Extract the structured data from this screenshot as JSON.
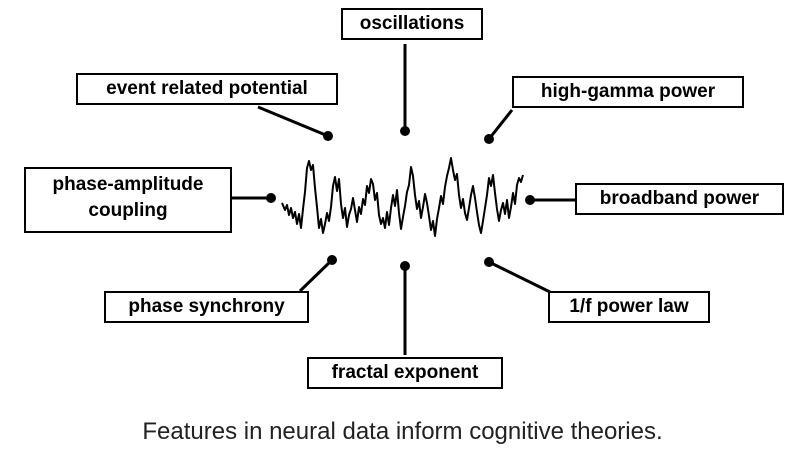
{
  "features": {
    "oscillations": "oscillations",
    "event_related_potential": "event related potential",
    "high_gamma_power": "high-gamma power",
    "phase_amplitude_coupling_line1": "phase-amplitude",
    "phase_amplitude_coupling_line2": "coupling",
    "broadband_power": "broadband power",
    "phase_synchrony": "phase synchrony",
    "one_over_f_power_law": "1/f power law",
    "fractal_exponent": "fractal exponent"
  },
  "caption": "Features in neural data inform cognitive theories.",
  "colors": {
    "stroke": "#000000",
    "background": "#ffffff",
    "caption": "#222222"
  }
}
